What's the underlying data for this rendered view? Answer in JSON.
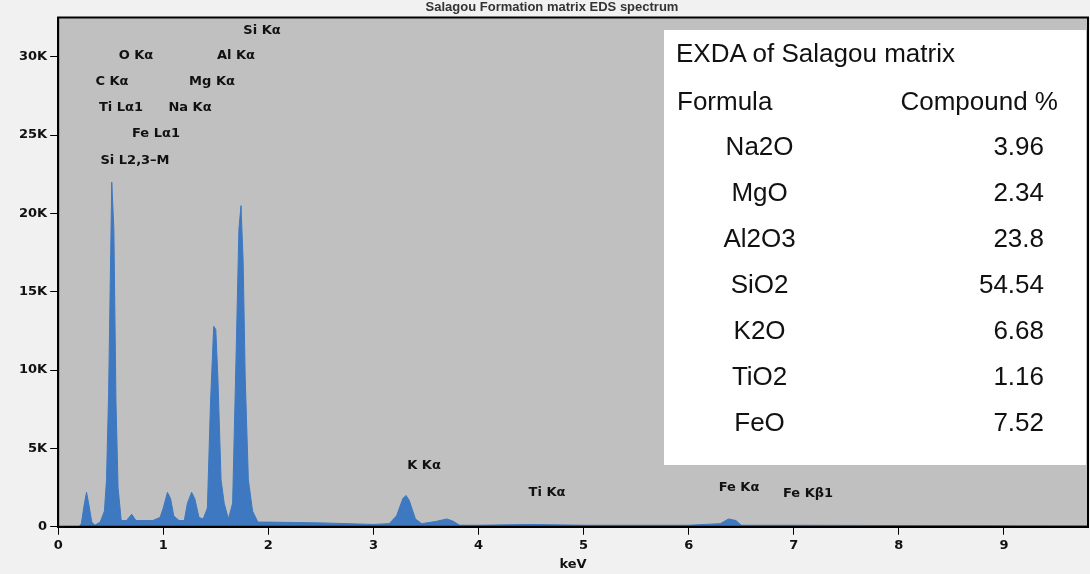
{
  "chart_data": [
    {
      "type": "area",
      "title": "Salagou Formation matrix EDS spectrum",
      "xlabel": "keV",
      "x": [
        0,
        0.2,
        0.22,
        0.25,
        0.27,
        0.29,
        0.32,
        0.35,
        0.4,
        0.44,
        0.46,
        0.48,
        0.5,
        0.51,
        0.53,
        0.55,
        0.57,
        0.6,
        0.65,
        0.7,
        0.74,
        0.8,
        0.9,
        0.97,
        1.0,
        1.04,
        1.07,
        1.1,
        1.15,
        1.2,
        1.23,
        1.27,
        1.3,
        1.34,
        1.38,
        1.42,
        1.45,
        1.48,
        1.5,
        1.52,
        1.55,
        1.58,
        1.62,
        1.66,
        1.69,
        1.72,
        1.74,
        1.76,
        1.78,
        1.81,
        1.85,
        1.9,
        2.0,
        2.5,
        3.0,
        3.15,
        3.22,
        3.28,
        3.31,
        3.34,
        3.4,
        3.46,
        3.6,
        3.7,
        3.76,
        3.82,
        4.0,
        4.5,
        5.0,
        6.0,
        6.3,
        6.38,
        6.45,
        6.5,
        7.0,
        8.0,
        9.0,
        9.8
      ],
      "series": [
        {
          "color": "#3e78c0",
          "values": [
            0,
            0,
            200,
            1500,
            2200,
            1500,
            300,
            100,
            300,
            1000,
            3000,
            8500,
            17500,
            22000,
            19000,
            8000,
            2500,
            400,
            400,
            800,
            400,
            400,
            400,
            600,
            1200,
            2200,
            1800,
            700,
            400,
            400,
            1500,
            2200,
            1800,
            600,
            500,
            1200,
            8000,
            12800,
            12600,
            9500,
            3000,
            1500,
            500,
            1500,
            10000,
            19000,
            20500,
            17000,
            9500,
            3000,
            1000,
            300,
            300,
            250,
            150,
            200,
            700,
            1800,
            2000,
            1700,
            500,
            200,
            350,
            500,
            350,
            100,
            100,
            150,
            100,
            100,
            200,
            500,
            400,
            100,
            100,
            80,
            60,
            50
          ]
        }
      ],
      "xlim": [
        0,
        9.8
      ],
      "xticks": [
        0,
        1,
        2,
        3,
        4,
        5,
        6,
        7,
        8,
        9
      ],
      "ylim": [
        0,
        32500
      ],
      "yticks": [
        {
          "value": 0,
          "label": "0"
        },
        {
          "value": 5000,
          "label": "5K"
        },
        {
          "value": 10000,
          "label": "10K"
        },
        {
          "value": 15000,
          "label": "15K"
        },
        {
          "value": 20000,
          "label": "20K"
        },
        {
          "value": 25000,
          "label": "25K"
        },
        {
          "value": 30000,
          "label": "30K"
        }
      ],
      "grid": false,
      "legend": false,
      "annotations": [
        "Si Kα",
        "O Kα",
        "Al Kα",
        "C Kα",
        "Mg Kα",
        "Ti Lα1",
        "Na Kα",
        "Fe Lα1",
        "Si L2,3–M",
        "K Kα",
        "Ti Kα",
        "Fe Kα",
        "Fe Kβ1"
      ]
    },
    {
      "type": "other",
      "title": "EXDA of Salagou matrix",
      "xlabel": "Formula",
      "ylabel": "Compound %",
      "categories": [
        "Na2O",
        "MgO",
        "Al2O3",
        "SiO2",
        "K2O",
        "TiO2",
        "FeO"
      ],
      "values": [
        3.96,
        2.34,
        23.8,
        54.54,
        6.68,
        1.16,
        7.52
      ],
      "data_labels": true
    }
  ]
}
